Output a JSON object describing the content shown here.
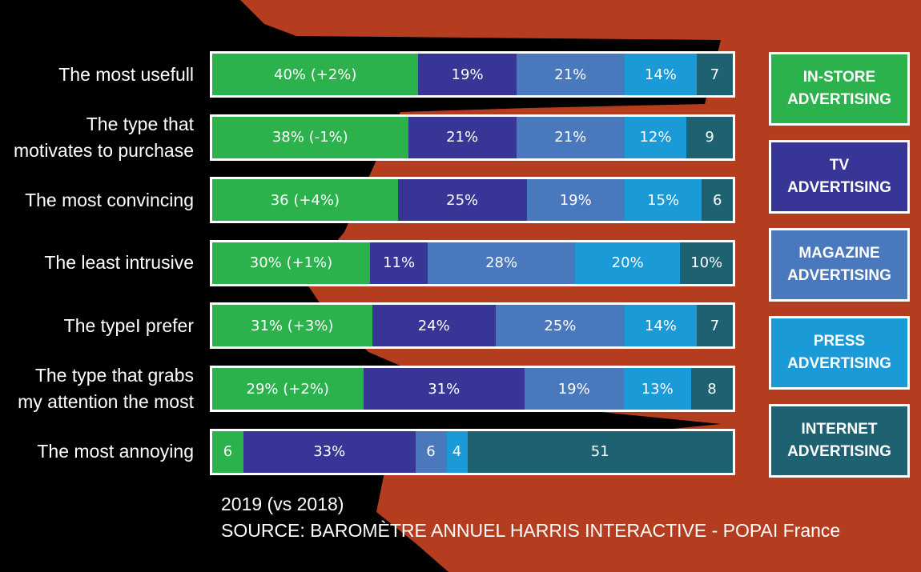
{
  "chart_data": {
    "type": "bar",
    "orientation": "horizontal-stacked-100",
    "categories": [
      "The most usefull",
      "The type that motivates to purchase",
      "The most convincing",
      "The least intrusive",
      "The typeI prefer",
      "The type that grabs my attention the most",
      "The most annoying"
    ],
    "series": [
      {
        "name": "IN-STORE ADVERTISING",
        "color": "#2bb24c",
        "values": [
          40,
          38,
          36,
          30,
          31,
          29,
          6
        ],
        "labels": [
          "40% (+2%)",
          "38% (-1%)",
          "36 (+4%)",
          "30% (+1%)",
          "31% (+3%)",
          "29% (+2%)",
          "6"
        ]
      },
      {
        "name": "TV ADVERTISING",
        "color": "#373596",
        "values": [
          19,
          21,
          25,
          11,
          24,
          31,
          33
        ],
        "labels": [
          "19%",
          "21%",
          "25%",
          "11%",
          "24%",
          "31%",
          "33%"
        ]
      },
      {
        "name": "MAGAZINE ADVERTISING",
        "color": "#4a78bd",
        "values": [
          21,
          21,
          19,
          28,
          25,
          19,
          6
        ],
        "labels": [
          "21%",
          "21%",
          "19%",
          "28%",
          "25%",
          "19%",
          "6"
        ]
      },
      {
        "name": "PRESS ADVERTISING",
        "color": "#1a9ad6",
        "values": [
          14,
          12,
          15,
          20,
          14,
          13,
          4
        ],
        "labels": [
          "14%",
          "12%",
          "15%",
          "20%",
          "14%",
          "13%",
          "4"
        ]
      },
      {
        "name": "INTERNET ADVERTISING",
        "color": "#1e6272",
        "values": [
          7,
          9,
          6,
          10,
          7,
          8,
          51
        ],
        "labels": [
          "7",
          "9",
          "6",
          "10%",
          "7",
          "8",
          "51"
        ]
      }
    ],
    "row_labels": [
      [
        "The most usefull"
      ],
      [
        "The type that",
        "motivates to purchase"
      ],
      [
        "The most convincing"
      ],
      [
        "The least intrusive"
      ],
      [
        "The typeI prefer"
      ],
      [
        "The type that grabs",
        "my attention the most"
      ],
      [
        "The most annoying"
      ]
    ],
    "legend": [
      [
        "IN-STORE",
        "ADVERTISING"
      ],
      [
        "TV",
        "ADVERTISING"
      ],
      [
        "MAGAZINE",
        "ADVERTISING"
      ],
      [
        "PRESS",
        "ADVERTISING"
      ],
      [
        "INTERNET",
        "ADVERTISING"
      ]
    ],
    "legend_placement": "right",
    "grid": false
  },
  "footer": {
    "note": "2019 (vs 2018)",
    "source": "SOURCE: BAROMÈTRE ANNUEL HARRIS INTERACTIVE - POPAI France"
  }
}
